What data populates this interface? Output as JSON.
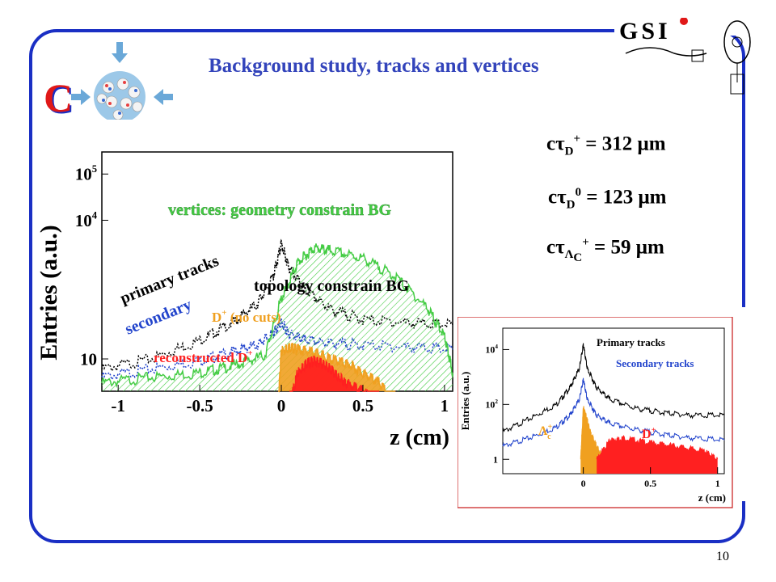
{
  "slide": {
    "title": "Background study, tracks and vertices",
    "logo_letter": "C",
    "logo_text": "GSI",
    "page_number": "10"
  },
  "formulas": [
    {
      "prefix": "cτ",
      "sub": "D",
      "sup": "+",
      "rest": " = 312 μm"
    },
    {
      "prefix": "cτ",
      "sub": "D",
      "sup": "0",
      "rest": " = 123 μm"
    },
    {
      "prefix": "cτ",
      "sub": "Λ",
      "sub2": "C",
      "sup": "+",
      "rest": " = 59 μm"
    }
  ],
  "chart_data": [
    {
      "type": "line",
      "title": "",
      "xlabel": "z (cm)",
      "ylabel": "Entries (a.u.)",
      "xlim": [
        -1.1,
        1.05
      ],
      "y_scale": "log",
      "x_ticks": [
        "-1",
        "-0.5",
        "0",
        "0.5",
        "1"
      ],
      "y_ticks": [
        "10",
        "10^4",
        "10^5"
      ],
      "annotations": [
        {
          "text": "vertices: geometry constrain BG",
          "color": "#44cc44"
        },
        {
          "text": "primary tracks",
          "color": "#000000"
        },
        {
          "text": "topology constrain BG",
          "color": "#000000"
        },
        {
          "text": "secondary",
          "color": "#2244cc"
        },
        {
          "text": "D",
          "sup": "+",
          "extra": " (no cuts)",
          "color": "#f0a020"
        },
        {
          "text": "reconstructed D",
          "sup": "+",
          "color": "#ff2020"
        }
      ],
      "series": [
        {
          "color": "#000000",
          "x": [
            -1.1,
            -0.8,
            -0.5,
            -0.3,
            -0.15,
            -0.05,
            0,
            0.05,
            0.15,
            0.3,
            0.5,
            0.8,
            1.05
          ],
          "y": [
            6,
            10,
            25,
            60,
            150,
            600,
            3000,
            900,
            300,
            120,
            70,
            60,
            55
          ]
        },
        {
          "color": "#2244cc",
          "x": [
            -1.1,
            -0.8,
            -0.5,
            -0.3,
            -0.15,
            -0.05,
            0,
            0.05,
            0.15,
            0.3,
            0.5,
            0.8,
            1.05
          ],
          "y": [
            4,
            6,
            9,
            14,
            20,
            35,
            60,
            35,
            25,
            22,
            20,
            18,
            16
          ]
        },
        {
          "color": "#44cc44",
          "x": [
            -1.1,
            -0.8,
            -0.5,
            -0.3,
            -0.1,
            0,
            0.1,
            0.2,
            0.3,
            0.5,
            0.7,
            0.9,
            1.0,
            1.05
          ],
          "y": [
            3,
            4,
            5,
            7,
            12,
            200,
            1200,
            2500,
            2200,
            1500,
            600,
            120,
            30,
            5
          ]
        },
        {
          "color": "#f0a020",
          "x": [
            -0.02,
            0,
            0.05,
            0.1,
            0.2,
            0.3,
            0.4,
            0.5,
            0.6,
            0.7
          ],
          "y": [
            1,
            15,
            18,
            16,
            14,
            10,
            8,
            5,
            3,
            1
          ]
        },
        {
          "color": "#ff2020",
          "x": [
            0.05,
            0.1,
            0.15,
            0.2,
            0.25,
            0.3,
            0.35,
            0.4,
            0.5,
            0.6
          ],
          "y": [
            1,
            5,
            8,
            9,
            8,
            6,
            4,
            3,
            2,
            1
          ]
        }
      ]
    },
    {
      "type": "line",
      "title": "",
      "xlabel": "z (cm)",
      "ylabel": "Entries (a.u.)",
      "xlim": [
        -0.6,
        1.05
      ],
      "y_scale": "log",
      "x_ticks": [
        "0",
        "0.5",
        "1"
      ],
      "y_ticks": [
        "1",
        "10^2",
        "10^4"
      ],
      "legend": [
        {
          "name": "Primary tracks",
          "color": "#000000"
        },
        {
          "name": "Secondary tracks",
          "color": "#2244cc"
        }
      ],
      "annotations": [
        {
          "text": "Λ",
          "sub": "c",
          "sup": "+",
          "color": "#f0a020"
        },
        {
          "text": "D",
          "sup": "+",
          "color": "#ff2020"
        }
      ],
      "series": [
        {
          "name": "Primary tracks",
          "color": "#000000",
          "x": [
            -0.6,
            -0.4,
            -0.2,
            -0.1,
            -0.03,
            0,
            0.03,
            0.1,
            0.2,
            0.4,
            0.6,
            0.8,
            1.05
          ],
          "y": [
            10,
            30,
            100,
            400,
            2000,
            15000,
            2000,
            400,
            150,
            70,
            50,
            40,
            40
          ]
        },
        {
          "name": "Secondary tracks",
          "color": "#2244cc",
          "x": [
            -0.6,
            -0.4,
            -0.2,
            -0.1,
            -0.03,
            0,
            0.03,
            0.1,
            0.2,
            0.4,
            0.6,
            0.8,
            1.05
          ],
          "y": [
            3,
            6,
            15,
            40,
            150,
            800,
            150,
            40,
            20,
            12,
            8,
            6,
            5
          ]
        },
        {
          "color": "#f0a020",
          "x": [
            -0.02,
            0,
            0.02,
            0.05,
            0.1,
            0.15
          ],
          "y": [
            1,
            80,
            40,
            10,
            3,
            1
          ]
        },
        {
          "color": "#ff2020",
          "x": [
            0.1,
            0.2,
            0.3,
            0.5,
            0.7,
            0.9,
            1.0
          ],
          "y": [
            1,
            5,
            6,
            4,
            3,
            2,
            1
          ]
        }
      ]
    }
  ]
}
